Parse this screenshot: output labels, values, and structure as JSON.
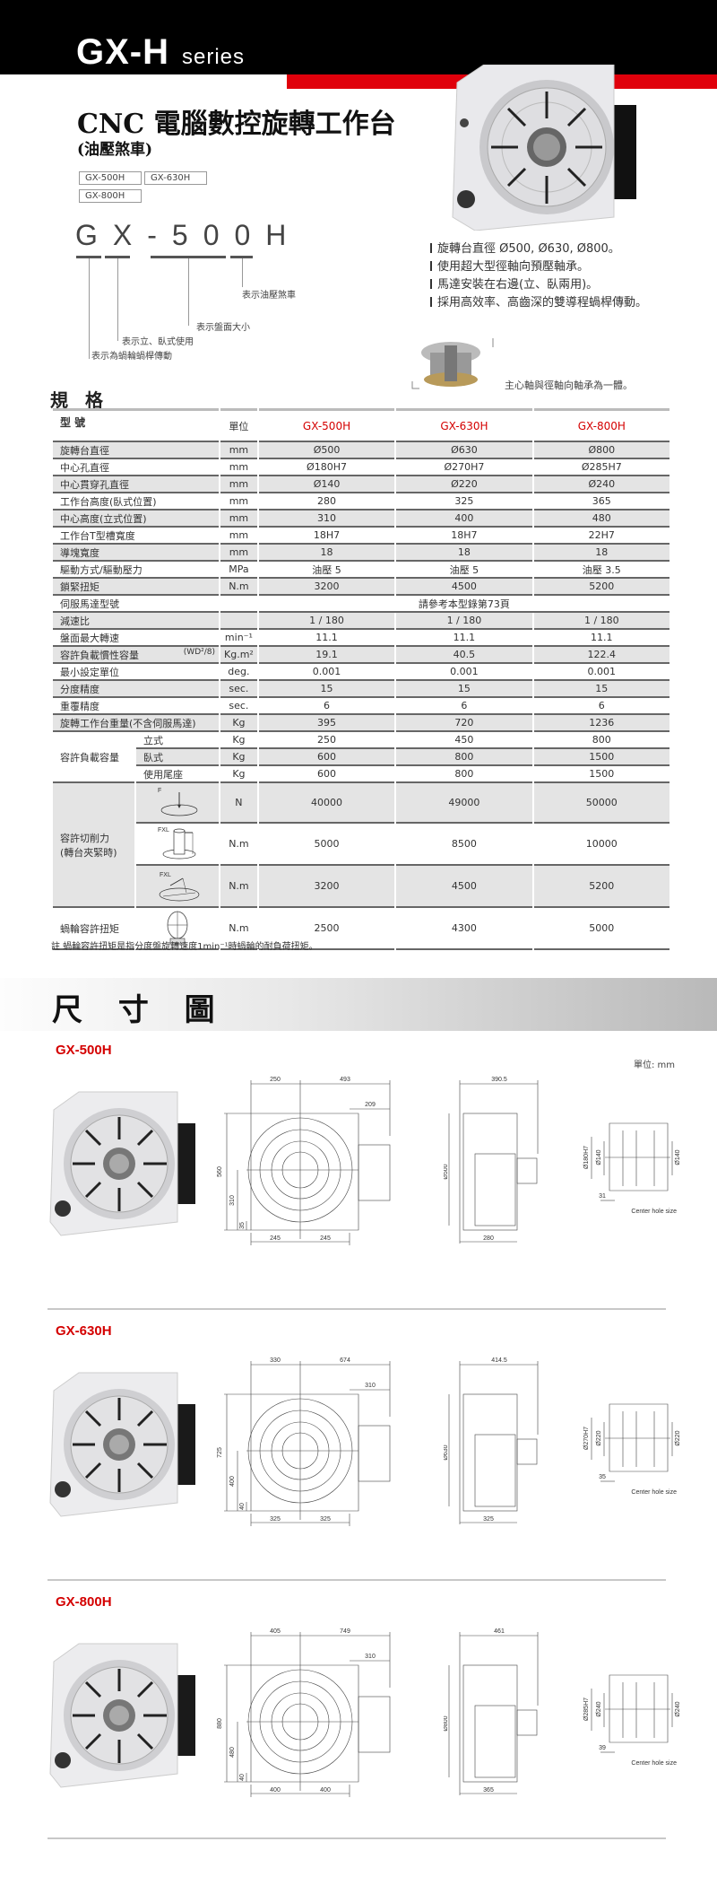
{
  "header": {
    "series_main": "GX-H",
    "series_sub": "series"
  },
  "title": "CNC 電腦數控旋轉工作台",
  "subtitle": "(油壓煞車)",
  "models": [
    "GX-500H",
    "GX-630H",
    "GX-800H"
  ],
  "code": {
    "text": "GX-500H",
    "labels": [
      "表示油壓煞車",
      "表示盤面大小",
      "表示立、臥式使用",
      "表示為蝸輪蝸桿傳動"
    ]
  },
  "features": [
    "旋轉台直徑 Ø500, Ø630, Ø800。",
    "使用超大型徑軸向預壓軸承。",
    "馬達安裝在右邊(立、臥兩用)。",
    "採用高效率、高齒深的雙導程蝸桿傳動。"
  ],
  "bearing_caption": "主心軸與徑軸向軸承為一體。",
  "spec": {
    "heading": "規 格",
    "col_model": "型 號",
    "col_unit": "單位",
    "rows": [
      {
        "label": "旋轉台直徑",
        "unit": "mm",
        "values": [
          "Ø500",
          "Ø630",
          "Ø800"
        ]
      },
      {
        "label": "中心孔直徑",
        "unit": "mm",
        "values": [
          "Ø180H7",
          "Ø270H7",
          "Ø285H7"
        ]
      },
      {
        "label": "中心貫穿孔直徑",
        "unit": "mm",
        "values": [
          "Ø140",
          "Ø220",
          "Ø240"
        ]
      },
      {
        "label": "工作台高度(臥式位置)",
        "unit": "mm",
        "values": [
          "280",
          "325",
          "365"
        ]
      },
      {
        "label": "中心高度(立式位置)",
        "unit": "mm",
        "values": [
          "310",
          "400",
          "480"
        ]
      },
      {
        "label": "工作台T型槽寬度",
        "unit": "mm",
        "values": [
          "18H7",
          "18H7",
          "22H7"
        ]
      },
      {
        "label": "導塊寬度",
        "unit": "mm",
        "values": [
          "18",
          "18",
          "18"
        ]
      },
      {
        "label": "驅動方式/驅動壓力",
        "unit": "MPa",
        "values": [
          "油壓 5",
          "油壓 5",
          "油壓 3.5"
        ]
      },
      {
        "label": "鎖緊扭矩",
        "unit": "N.m",
        "values": [
          "3200",
          "4500",
          "5200"
        ]
      },
      {
        "label": "伺服馬達型號",
        "unit": "",
        "span": "請參考本型錄第73頁"
      },
      {
        "label": "減速比",
        "unit": "",
        "values": [
          "1 / 180",
          "1 / 180",
          "1 / 180"
        ]
      },
      {
        "label": "盤面最大轉速",
        "unit": "min⁻¹",
        "values": [
          "11.1",
          "11.1",
          "11.1"
        ]
      },
      {
        "label": "容許負載慣性容量",
        "extra": "(WD²/8)",
        "unit": "Kg.m²",
        "values": [
          "19.1",
          "40.5",
          "122.4"
        ]
      },
      {
        "label": "最小設定單位",
        "unit": "deg.",
        "values": [
          "0.001",
          "0.001",
          "0.001"
        ]
      },
      {
        "label": "分度精度",
        "unit": "sec.",
        "values": [
          "15",
          "15",
          "15"
        ]
      },
      {
        "label": "重覆精度",
        "unit": "sec.",
        "values": [
          "6",
          "6",
          "6"
        ]
      },
      {
        "label": "旋轉工作台重量(不含伺服馬達)",
        "unit": "Kg",
        "values": [
          "395",
          "720",
          "1236"
        ]
      }
    ],
    "load": {
      "label": "容許負載容量",
      "rows": [
        {
          "label": "立式",
          "unit": "Kg",
          "values": [
            "250",
            "450",
            "800"
          ]
        },
        {
          "label": "臥式",
          "unit": "Kg",
          "values": [
            "600",
            "800",
            "1500"
          ]
        },
        {
          "label": "使用尾座",
          "unit": "Kg",
          "values": [
            "600",
            "800",
            "1500"
          ]
        }
      ]
    },
    "cutting": {
      "label": "容許切削力",
      "label2": "(轉台夾緊時)",
      "rows": [
        {
          "icon": "F",
          "unit": "N",
          "values": [
            "40000",
            "49000",
            "50000"
          ]
        },
        {
          "icon": "FXL",
          "unit": "N.m",
          "values": [
            "5000",
            "8500",
            "10000"
          ]
        },
        {
          "icon": "FXL",
          "unit": "N.m",
          "values": [
            "3200",
            "4500",
            "5200"
          ]
        }
      ]
    },
    "worm": {
      "label": "蝸輪容許扭矩",
      "unit": "N.m",
      "values": [
        "2500",
        "4300",
        "5000"
      ]
    },
    "note": "註 蝸輪容許扭矩是指分度盤旋轉速度1min⁻¹時蝸輪的耐負荷扭矩。"
  },
  "dimensions": {
    "heading": "尺 寸 圖",
    "unit": "單位: mm",
    "center_hole": "Center hole size",
    "models": [
      {
        "name": "GX-500H",
        "top": [
          "250",
          "493"
        ],
        "motor": "209",
        "height": "560",
        "center": "310",
        "base": "35",
        "bottom": [
          "245",
          "245"
        ],
        "side_width": "390.5",
        "side_dia": "Ø500",
        "side_bottom": "280",
        "hole": [
          "Ø180H7",
          "Ø140",
          "Ø140"
        ],
        "hole_depth": "31"
      },
      {
        "name": "GX-630H",
        "top": [
          "330",
          "674"
        ],
        "motor": "310",
        "height": "725",
        "center": "400",
        "base": "40",
        "bottom": [
          "325",
          "325"
        ],
        "side_width": "414.5",
        "side_dia": "Ø630",
        "side_bottom": "325",
        "hole": [
          "Ø270H7",
          "Ø220",
          "Ø220"
        ],
        "hole_depth": "35"
      },
      {
        "name": "GX-800H",
        "top": [
          "405",
          "749"
        ],
        "motor": "310",
        "height": "880",
        "center": "480",
        "base": "40",
        "bottom": [
          "400",
          "400"
        ],
        "side_width": "461",
        "side_dia": "Ø800",
        "side_bottom": "365",
        "hole": [
          "Ø285H7",
          "Ø240",
          "Ø240"
        ],
        "hole_depth": "39"
      }
    ]
  },
  "colors": {
    "brand_red": "#e0000b",
    "model_red": "#d40000",
    "header_black": "#000000"
  }
}
